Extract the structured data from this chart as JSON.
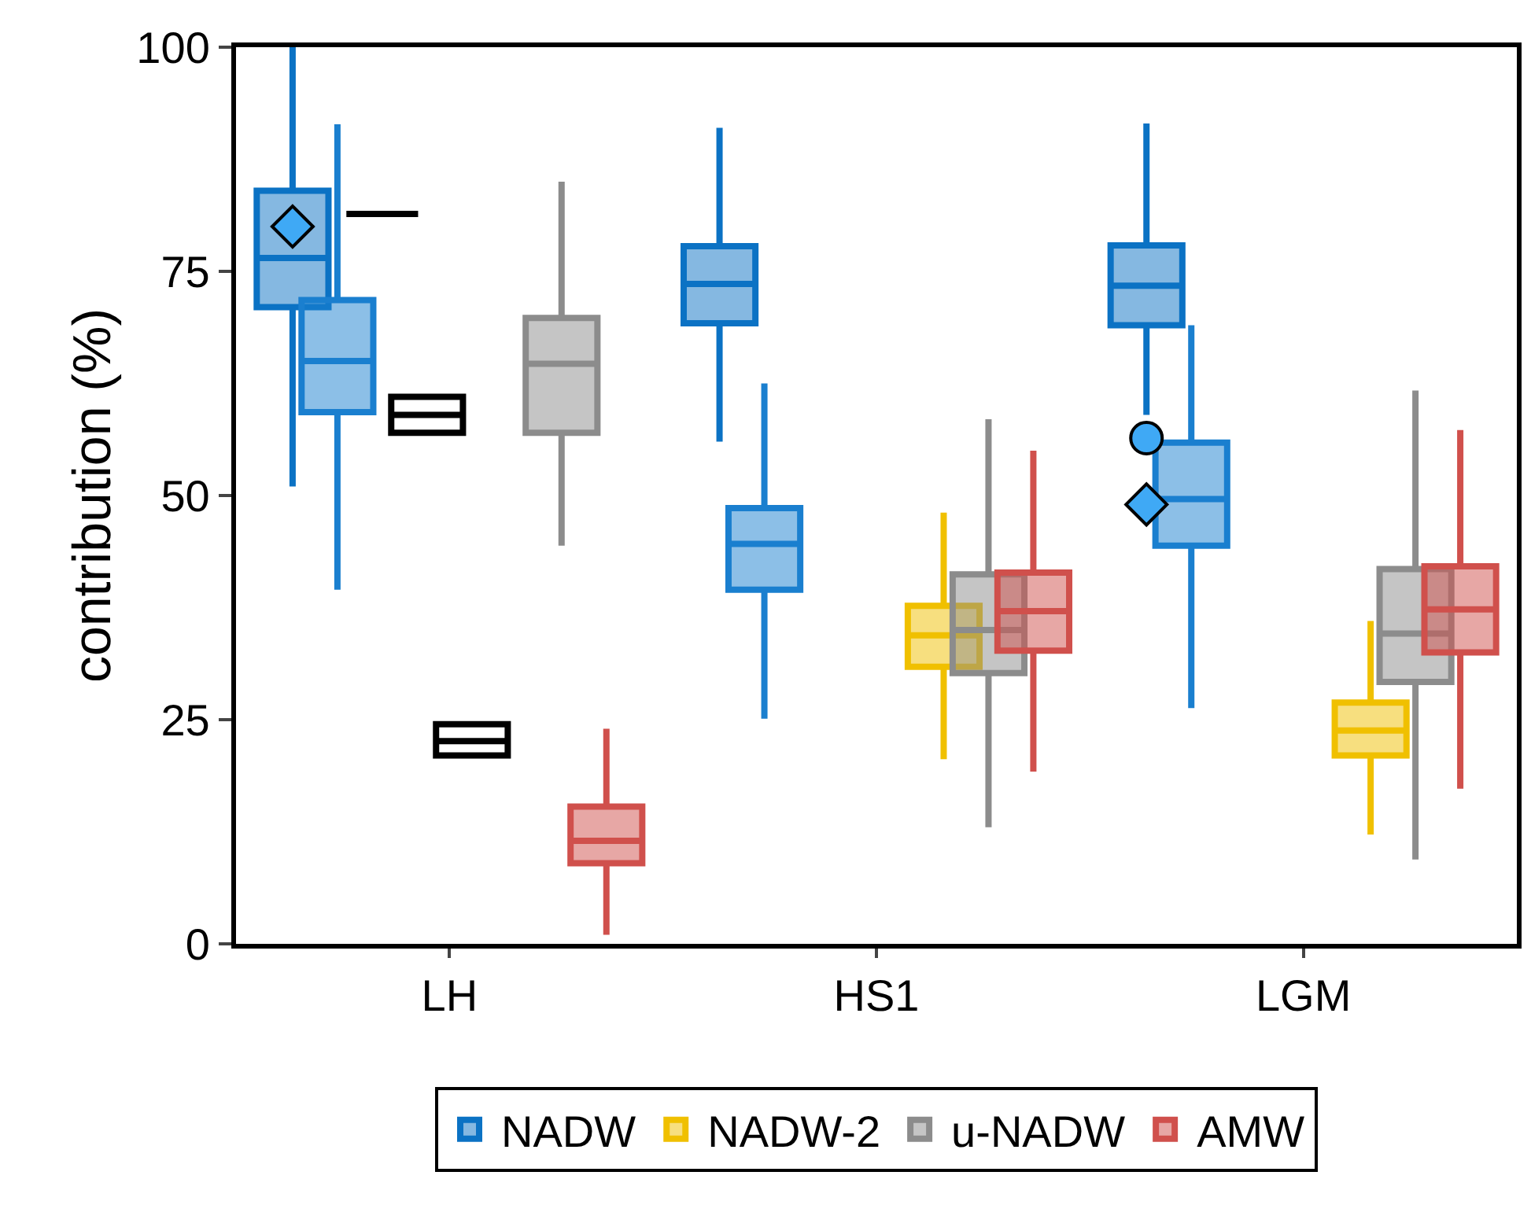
{
  "chart_data": {
    "type": "box",
    "ylabel": "contribution (%)",
    "categories": [
      "LH",
      "HS1",
      "LGM"
    ],
    "ylim": [
      0,
      100
    ],
    "yticks": [
      0,
      25,
      50,
      75,
      100
    ],
    "grid": false,
    "legend": "bottom",
    "series": [
      {
        "name": "NADW",
        "color": "#0b72c4",
        "boxes": [
          {
            "low": 51,
            "q1": 71,
            "median": 76.5,
            "q3": 84,
            "high": 100
          },
          {
            "low": 56,
            "q1": 69.2,
            "median": 73.6,
            "q3": 77.8,
            "high": 91
          },
          {
            "low": 59,
            "q1": 69,
            "median": 73.4,
            "q3": 77.9,
            "high": 91.5
          }
        ]
      },
      {
        "color": "#1a7fcf",
        "boxes": [
          {
            "low": 39.5,
            "q1": 59.3,
            "median": 65,
            "q3": 71.8,
            "high": 91.4
          },
          {
            "low": 25.1,
            "q1": 39.5,
            "median": 44.6,
            "q3": 48.6,
            "high": 62.5
          },
          {
            "low": 26.3,
            "q1": 44.4,
            "median": 49.6,
            "q3": 55.9,
            "high": 69
          }
        ]
      },
      {
        "color": "#000000",
        "boxes": [
          {
            "low": 81.4,
            "q1": 81.4,
            "median": 81.4,
            "q3": 81.4,
            "high": 81.4
          },
          null,
          null
        ]
      },
      {
        "color": "#000000",
        "boxes": [
          {
            "low": 57,
            "q1": 57,
            "median": 59,
            "q3": 61,
            "high": 61
          },
          null,
          null
        ]
      },
      {
        "color": "#000000",
        "boxes": [
          {
            "low": 21,
            "q1": 21,
            "median": 22.6,
            "q3": 24.5,
            "high": 24.5
          },
          null,
          null
        ]
      },
      {
        "name": "NADW-2",
        "color": "#f0c000",
        "boxes": [
          null,
          {
            "low": 20.6,
            "q1": 30.9,
            "median": 34.4,
            "q3": 37.7,
            "high": 48.1
          },
          {
            "low": 12.2,
            "q1": 21,
            "median": 23.8,
            "q3": 26.9,
            "high": 36
          }
        ]
      },
      {
        "name": "u-NADW",
        "color": "#8c8c8c",
        "boxes": [
          {
            "low": 44.4,
            "q1": 57,
            "median": 64.7,
            "q3": 69.8,
            "high": 85
          },
          {
            "low": 13,
            "q1": 30.2,
            "median": 35,
            "q3": 41.2,
            "high": 58.5
          },
          {
            "low": 9.4,
            "q1": 29.2,
            "median": 34.6,
            "q3": 41.8,
            "high": 61.7
          }
        ]
      },
      {
        "name": "AMW",
        "color": "#d0504c",
        "boxes": [
          {
            "low": 1,
            "q1": 9,
            "median": 11.5,
            "q3": 15.3,
            "high": 24
          },
          {
            "low": 19.2,
            "q1": 32.7,
            "median": 37.1,
            "q3": 41.4,
            "high": 55
          },
          {
            "low": 17.3,
            "q1": 32.5,
            "median": 37.3,
            "q3": 42.1,
            "high": 57.3
          }
        ]
      },
      {
        "type": "scatter",
        "marker": "diamond",
        "color": "#3fa9f5",
        "x": [
          "LH",
          "LGM"
        ],
        "values": [
          80,
          49
        ]
      },
      {
        "type": "scatter",
        "marker": "circle",
        "color": "#3fa9f5",
        "x": [
          "LGM"
        ],
        "values": [
          56.4
        ]
      }
    ]
  }
}
